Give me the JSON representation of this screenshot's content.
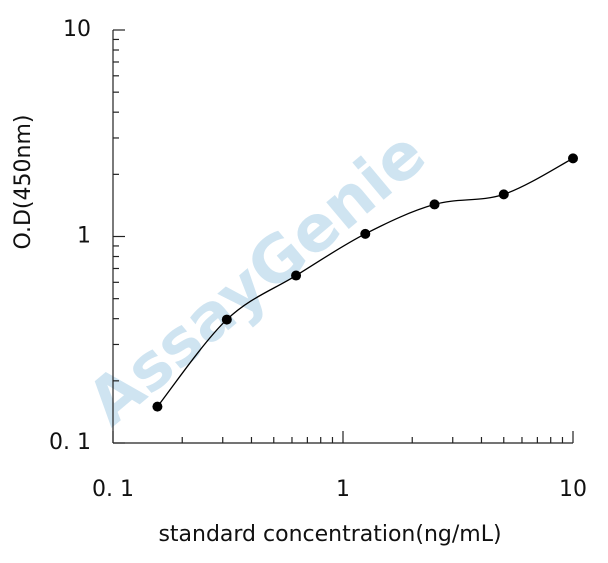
{
  "chart_data": {
    "type": "line",
    "xlabel": "standard concentration(ng/mL)",
    "ylabel": "O.D(450nm)",
    "watermark": "AssayGenie",
    "x": [
      0.156,
      0.3125,
      0.625,
      1.25,
      2.5,
      5,
      10
    ],
    "series": [
      {
        "color": "#000000",
        "values": [
          0.15,
          0.396,
          0.647,
          1.03,
          1.43,
          1.6,
          2.39
        ]
      }
    ],
    "xlim": [
      0.1,
      10
    ],
    "ylim": [
      0.1,
      10
    ],
    "xticks": [
      {
        "value": 0.1,
        "label": "0. 1"
      },
      1,
      10
    ],
    "yticks": [
      {
        "value": 0.1,
        "label": "0. 1"
      },
      1,
      10
    ],
    "xscale": "log",
    "yscale": "log"
  }
}
